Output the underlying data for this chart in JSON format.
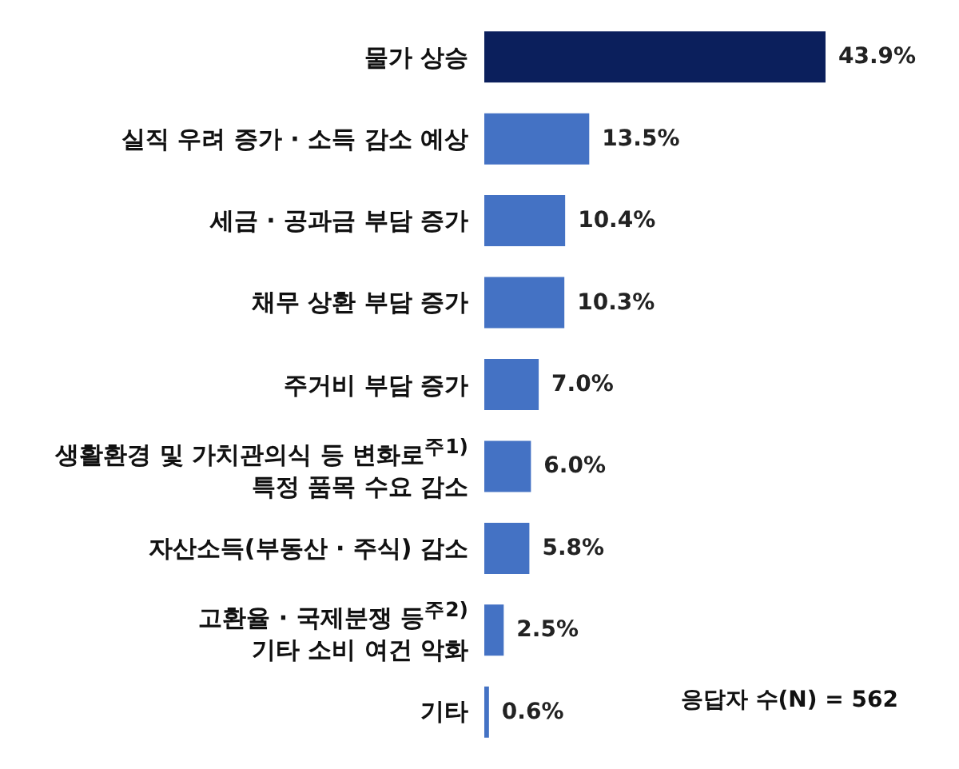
{
  "chart_data": {
    "type": "bar",
    "orientation": "horizontal",
    "categories": [
      "물가 상승",
      "실직 우려 증가  ·  소득 감소 예상",
      "세금  ·  공과금 부담 증가",
      "채무 상환 부담 증가",
      "주거비 부담 증가",
      "생활환경 및 가치관의식 등 변화로$^{주1)}$\n특정 품목 수요 감소",
      "자산소득(부동산 · 주식) 감소",
      "고환율  ·  국제분쟁 등$^{주2)}$\n기타 소비 여건 악화",
      "기타"
    ],
    "values": [
      43.9,
      13.5,
      10.4,
      10.3,
      7.0,
      6.0,
      5.8,
      2.5,
      0.6
    ],
    "colors": [
      "#0b1f5c",
      "#4472c4",
      "#4472c4",
      "#4472c4",
      "#4472c4",
      "#4472c4",
      "#4472c4",
      "#4472c4",
      "#4472c4"
    ],
    "value_labels": [
      "43.9%",
      "13.5%",
      "10.4%",
      "10.3%",
      "7.0%",
      "6.0%",
      "5.8%",
      "2.5%",
      "0.6%"
    ],
    "annotations": [
      "응답자 수(N) = 562"
    ]
  }
}
